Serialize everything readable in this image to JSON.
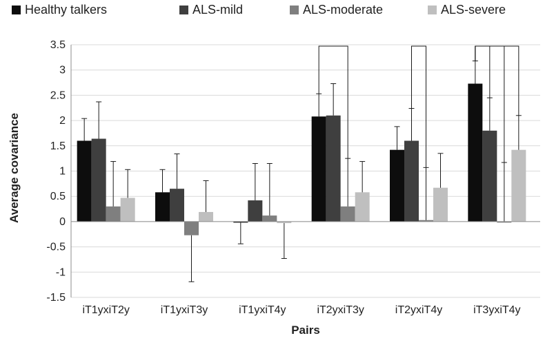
{
  "chart_data": {
    "type": "bar",
    "xlabel": "Pairs",
    "ylabel": "Average covariance",
    "ylim": [
      -1.5,
      3.5
    ],
    "yticks": [
      3.5,
      3,
      2.5,
      2,
      1.5,
      1,
      0.5,
      0,
      -0.5,
      -1,
      -1.5
    ],
    "grid": true,
    "legend_position": "top",
    "categories": [
      "iT1yxiT2y",
      "iT1yxiT3y",
      "iT1yxiT4y",
      "iT2yxiT3y",
      "iT2yxiT4y",
      "iT3yxiT4y"
    ],
    "series": [
      {
        "name": "Healthy talkers",
        "color": "#0d0d0d",
        "values": [
          1.6,
          0.58,
          -0.02,
          2.08,
          1.42,
          2.73
        ],
        "errors": [
          0.44,
          0.45,
          0.42,
          0.45,
          0.46,
          0.45
        ]
      },
      {
        "name": "ALS-mild",
        "color": "#3f3f3f",
        "values": [
          1.64,
          0.65,
          0.42,
          2.1,
          1.6,
          1.8
        ],
        "errors": [
          0.73,
          0.69,
          0.73,
          0.63,
          0.64,
          0.65
        ]
      },
      {
        "name": "ALS-moderate",
        "color": "#7f7f7f",
        "values": [
          0.3,
          -0.27,
          0.12,
          0.3,
          0.03,
          0.0
        ],
        "errors": [
          0.89,
          0.92,
          1.03,
          0.95,
          1.04,
          1.17
        ]
      },
      {
        "name": "ALS-severe",
        "color": "#bfbfbf",
        "values": [
          0.47,
          0.19,
          -0.03,
          0.58,
          0.67,
          1.42
        ],
        "errors": [
          0.56,
          0.62,
          0.7,
          0.61,
          0.68,
          0.68
        ]
      }
    ],
    "significance_brackets": [
      {
        "category": "iT2yxiT3y",
        "from": "Healthy talkers",
        "to": "ALS-moderate"
      },
      {
        "category": "iT2yxiT4y",
        "from": "ALS-mild",
        "to": "ALS-moderate"
      },
      {
        "category": "iT3yxiT4y",
        "from": "Healthy talkers",
        "to": "ALS-mild"
      },
      {
        "category": "iT3yxiT4y",
        "from": "Healthy talkers",
        "to": "ALS-moderate"
      },
      {
        "category": "iT3yxiT4y",
        "from": "Healthy talkers",
        "to": "ALS-severe"
      }
    ]
  }
}
